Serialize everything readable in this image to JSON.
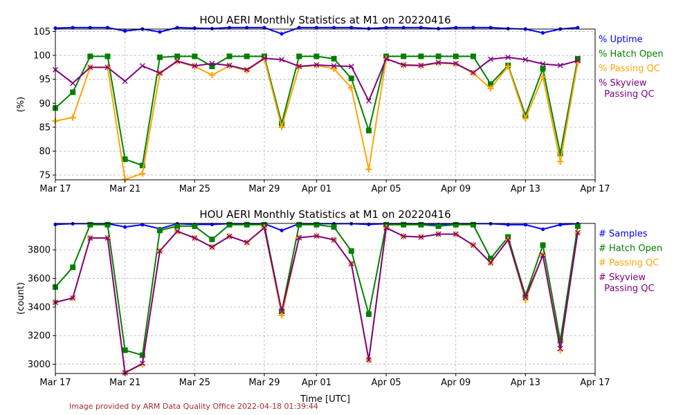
{
  "credit": "Image provided by ARM Data Quality Office 2022-04-18 01:39:44",
  "colors": {
    "uptime": "#0000ff",
    "hatch": "#008000",
    "passing": "#ffa500",
    "skyview": "#800080",
    "credit": "#a52a2a"
  },
  "chart_data": [
    {
      "type": "line",
      "title": "HOU AERI Monthly Statistics at M1 on 20220416",
      "xlabel": "",
      "ylabel": "(%)",
      "ylim": [
        74,
        105.5
      ],
      "yticks": [
        75,
        80,
        85,
        90,
        95,
        100,
        105
      ],
      "x_dates": [
        "2022-03-17",
        "2022-03-18",
        "2022-03-19",
        "2022-03-20",
        "2022-03-21",
        "2022-03-22",
        "2022-03-23",
        "2022-03-24",
        "2022-03-25",
        "2022-03-26",
        "2022-03-27",
        "2022-03-28",
        "2022-03-29",
        "2022-03-30",
        "2022-03-31",
        "2022-04-01",
        "2022-04-02",
        "2022-04-03",
        "2022-04-04",
        "2022-04-05",
        "2022-04-06",
        "2022-04-07",
        "2022-04-08",
        "2022-04-09",
        "2022-04-10",
        "2022-04-11",
        "2022-04-12",
        "2022-04-13",
        "2022-04-14",
        "2022-04-15",
        "2022-04-16"
      ],
      "xlim": [
        "2022-03-17",
        "2022-04-17"
      ],
      "xtick_labels": [
        "Mar 17",
        "Mar 21",
        "Mar 25",
        "Mar 29",
        "Apr 01",
        "Apr 05",
        "Apr 09",
        "Apr 13",
        "Apr 17"
      ],
      "grid": true,
      "legend_placement": "outside right",
      "series": [
        {
          "name": "% Uptime",
          "color": "#0000ff",
          "marker": "dot",
          "values": [
            105.7,
            105.8,
            105.8,
            105.8,
            105.1,
            105.5,
            104.9,
            105.8,
            105.7,
            105.6,
            105.8,
            105.8,
            105.8,
            104.5,
            105.8,
            105.8,
            105.8,
            105.8,
            105.6,
            105.8,
            105.8,
            105.8,
            105.6,
            105.8,
            105.8,
            105.8,
            105.6,
            105.5,
            104.7,
            105.5,
            105.8
          ]
        },
        {
          "name": "% Hatch Open",
          "color": "#008000",
          "marker": "square",
          "values": [
            89.0,
            92.3,
            99.8,
            99.8,
            78.3,
            77.0,
            99.6,
            99.8,
            99.8,
            97.7,
            99.8,
            99.8,
            99.8,
            85.8,
            99.8,
            99.8,
            99.3,
            95.2,
            84.3,
            99.8,
            99.8,
            99.8,
            99.8,
            99.8,
            99.8,
            94.0,
            97.9,
            87.5,
            97.2,
            79.5,
            99.3
          ]
        },
        {
          "name": "% Passing QC",
          "color": "#ffa500",
          "marker": "plus",
          "values": [
            86.3,
            87.0,
            97.5,
            97.5,
            74.1,
            75.3,
            96.2,
            98.7,
            97.7,
            95.9,
            97.8,
            96.8,
            99.3,
            85.0,
            97.6,
            97.9,
            97.2,
            93.2,
            76.2,
            99.3,
            97.9,
            97.8,
            98.4,
            98.2,
            96.3,
            93.1,
            97.7,
            86.8,
            95.5,
            77.8,
            98.5
          ]
        },
        {
          "name": "% Skyview\n  Passing QC",
          "color": "#800080",
          "marker": "x",
          "values": [
            97.0,
            94.2,
            97.5,
            97.5,
            94.6,
            97.8,
            96.3,
            98.8,
            97.8,
            98.3,
            97.9,
            97.0,
            99.4,
            99.1,
            97.7,
            98.0,
            97.8,
            97.7,
            90.5,
            99.3,
            98.0,
            97.9,
            98.5,
            98.3,
            96.4,
            99.2,
            99.6,
            99.1,
            98.2,
            97.9,
            98.9
          ]
        }
      ]
    },
    {
      "type": "line",
      "title": "HOU AERI Monthly Statistics at M1 on 20220416",
      "xlabel": "Time [UTC]",
      "ylabel": "(count)",
      "ylim": [
        2935,
        3985
      ],
      "yticks": [
        3000,
        3200,
        3400,
        3600,
        3800
      ],
      "x_dates": [
        "2022-03-17",
        "2022-03-18",
        "2022-03-19",
        "2022-03-20",
        "2022-03-21",
        "2022-03-22",
        "2022-03-23",
        "2022-03-24",
        "2022-03-25",
        "2022-03-26",
        "2022-03-27",
        "2022-03-28",
        "2022-03-29",
        "2022-03-30",
        "2022-03-31",
        "2022-04-01",
        "2022-04-02",
        "2022-04-03",
        "2022-04-04",
        "2022-04-05",
        "2022-04-06",
        "2022-04-07",
        "2022-04-08",
        "2022-04-09",
        "2022-04-10",
        "2022-04-11",
        "2022-04-12",
        "2022-04-13",
        "2022-04-14",
        "2022-04-15",
        "2022-04-16"
      ],
      "xlim": [
        "2022-03-17",
        "2022-04-17"
      ],
      "xtick_labels": [
        "Mar 17",
        "Mar 21",
        "Mar 25",
        "Mar 29",
        "Apr 01",
        "Apr 05",
        "Apr 09",
        "Apr 13",
        "Apr 17"
      ],
      "grid": true,
      "legend_placement": "outside right",
      "series": [
        {
          "name": "# Samples",
          "color": "#0000ff",
          "marker": "dot",
          "values": [
            3978,
            3983,
            3983,
            3983,
            3960,
            3976,
            3948,
            3983,
            3978,
            3978,
            3983,
            3983,
            3983,
            3936,
            3983,
            3983,
            3983,
            3983,
            3978,
            3983,
            3983,
            3983,
            3978,
            3983,
            3983,
            3983,
            3976,
            3976,
            3944,
            3976,
            3983
          ]
        },
        {
          "name": "# Hatch Open",
          "color": "#008000",
          "marker": "square",
          "values": [
            3540,
            3678,
            3976,
            3976,
            3098,
            3063,
            3936,
            3966,
            3966,
            3873,
            3976,
            3976,
            3976,
            3370,
            3976,
            3976,
            3960,
            3792,
            3350,
            3976,
            3976,
            3976,
            3966,
            3976,
            3976,
            3740,
            3890,
            3480,
            3833,
            3165,
            3966
          ]
        },
        {
          "name": "# Passing QC",
          "color": "#ffa500",
          "marker": "plus",
          "values": [
            3433,
            3463,
            3883,
            3883,
            2940,
            2998,
            3792,
            3930,
            3883,
            3820,
            3895,
            3852,
            3955,
            3342,
            3885,
            3897,
            3870,
            3703,
            3030,
            3955,
            3895,
            3890,
            3910,
            3910,
            3833,
            3710,
            3870,
            3450,
            3763,
            3095,
            3920
          ]
        },
        {
          "name": "# Skyview\n  Passing QC",
          "color": "#800080",
          "marker": "x",
          "values": [
            3433,
            3463,
            3883,
            3883,
            2940,
            3005,
            3792,
            3930,
            3883,
            3820,
            3895,
            3852,
            3955,
            3370,
            3885,
            3897,
            3870,
            3703,
            3030,
            3955,
            3895,
            3890,
            3910,
            3910,
            3833,
            3710,
            3870,
            3468,
            3763,
            3110,
            3920
          ]
        }
      ]
    }
  ]
}
